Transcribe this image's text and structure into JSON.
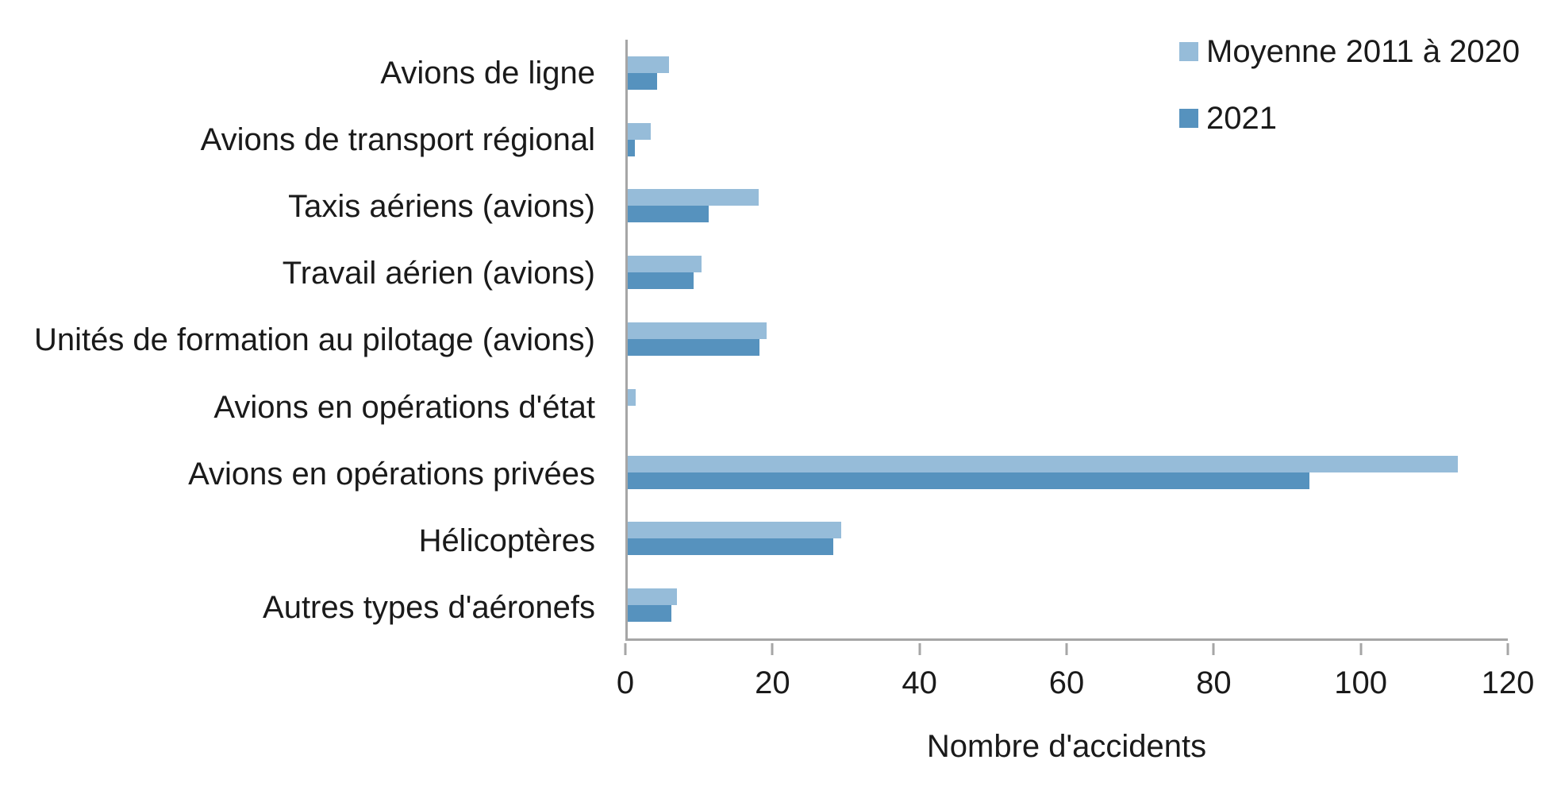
{
  "chart_data": {
    "type": "bar",
    "orientation": "horizontal",
    "title": "",
    "xlabel": "Nombre d'accidents",
    "ylabel": "",
    "xlim": [
      0,
      120
    ],
    "xticks": [
      0,
      20,
      40,
      60,
      80,
      100,
      120
    ],
    "grid": false,
    "legend_position": "top-right",
    "categories": [
      "Avions de ligne",
      "Avions de transport régional",
      "Taxis aériens (avions)",
      "Travail aérien (avions)",
      "Unités de formation au pilotage (avions)",
      "Avions en opérations d'état",
      "Avions en opérations privées",
      "Hélicoptères",
      "Autres types d'aéronefs"
    ],
    "series": [
      {
        "name": "Moyenne 2011 à 2020",
        "color": "#96bcd9",
        "values": [
          5.6,
          3.1,
          17.8,
          10.1,
          18.9,
          1.1,
          113.2,
          29.1,
          6.7
        ]
      },
      {
        "name": "2021",
        "color": "#5692be",
        "values": [
          4,
          1,
          11,
          9,
          18,
          0,
          93,
          28,
          6
        ]
      }
    ]
  },
  "colors": {
    "axis": "#a6a6a6",
    "text": "#1a1a1a",
    "background": "#ffffff"
  }
}
